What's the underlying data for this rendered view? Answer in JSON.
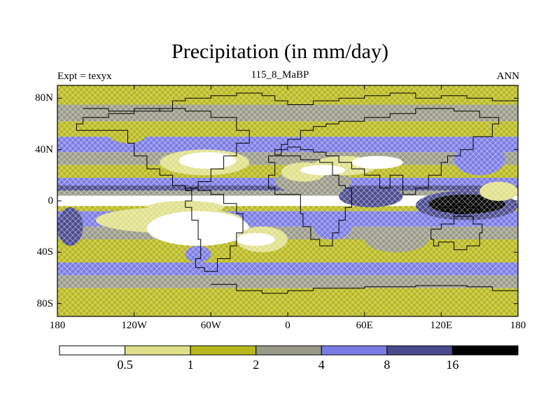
{
  "title": "Precipitation (in mm/day)",
  "subtitle": "115_8_MaBP",
  "left_label": "Expt = texyx",
  "right_label": "ANN",
  "colors": {
    "c0": "#ffffff",
    "c1": "#e0e08a",
    "c2": "#b8b81c",
    "c3": "#9a9a88",
    "c4": "#7b7be6",
    "c5": "#4a4a8e",
    "c6": "#000000",
    "land_outline": "#000000"
  },
  "chart_data": {
    "type": "heatmap",
    "variable": "Precipitation",
    "units": "mm/day",
    "xlim": [
      -180,
      180
    ],
    "ylim": [
      -90,
      90
    ],
    "x_ticks": [
      {
        "value": -180,
        "label": "180"
      },
      {
        "value": -120,
        "label": "120W"
      },
      {
        "value": -60,
        "label": "60W"
      },
      {
        "value": 0,
        "label": "0"
      },
      {
        "value": 60,
        "label": "60E"
      },
      {
        "value": 120,
        "label": "120E"
      },
      {
        "value": 180,
        "label": "180"
      }
    ],
    "y_ticks": [
      {
        "value": 80,
        "label": "80N"
      },
      {
        "value": 40,
        "label": "40N"
      },
      {
        "value": 0,
        "label": "0"
      },
      {
        "value": -40,
        "label": "40S"
      },
      {
        "value": -80,
        "label": "80S"
      }
    ],
    "colorbar": {
      "levels": [
        0.5,
        1,
        2,
        4,
        8,
        16
      ],
      "labels": [
        "0.5",
        "1",
        "2",
        "4",
        "8",
        "16"
      ],
      "colors": [
        "#ffffff",
        "#e0e08a",
        "#b8b81c",
        "#9a9a88",
        "#7b7be6",
        "#4a4a8e",
        "#000000"
      ]
    },
    "zonal_bands": [
      {
        "lat": [
          75,
          90
        ],
        "class": 2
      },
      {
        "lat": [
          62,
          75
        ],
        "class": 3
      },
      {
        "lat": [
          50,
          62
        ],
        "class": 2
      },
      {
        "lat": [
          38,
          50
        ],
        "class": 4
      },
      {
        "lat": [
          28,
          38
        ],
        "class": 3
      },
      {
        "lat": [
          18,
          28
        ],
        "class": 2
      },
      {
        "lat": [
          12,
          18
        ],
        "class": 4
      },
      {
        "lat": [
          8,
          12
        ],
        "class": 5
      },
      {
        "lat": [
          4,
          8
        ],
        "class": 3
      },
      {
        "lat": [
          -4,
          4
        ],
        "class": 0
      },
      {
        "lat": [
          -8,
          -4
        ],
        "class": 2
      },
      {
        "lat": [
          -20,
          -8
        ],
        "class": 4
      },
      {
        "lat": [
          -30,
          -20
        ],
        "class": 3
      },
      {
        "lat": [
          -48,
          -30
        ],
        "class": 2
      },
      {
        "lat": [
          -58,
          -48
        ],
        "class": 4
      },
      {
        "lat": [
          -68,
          -58
        ],
        "class": 3
      },
      {
        "lat": [
          -90,
          -68
        ],
        "class": 2
      }
    ],
    "regions": [
      {
        "lon": [
          -180,
          -160
        ],
        "lat": [
          -35,
          -5
        ],
        "class": 5
      },
      {
        "lon": [
          -140,
          -110
        ],
        "lat": [
          45,
          60
        ],
        "class": 2
      },
      {
        "lon": [
          -100,
          -30
        ],
        "lat": [
          20,
          40
        ],
        "class": 1
      },
      {
        "lon": [
          -85,
          -40
        ],
        "lat": [
          25,
          38
        ],
        "class": 0
      },
      {
        "lon": [
          -110,
          -50
        ],
        "lat": [
          -10,
          0
        ],
        "class": 1
      },
      {
        "lon": [
          -150,
          -35
        ],
        "lat": [
          -25,
          -5
        ],
        "class": 1
      },
      {
        "lon": [
          -110,
          -30
        ],
        "lat": [
          -35,
          -8
        ],
        "class": 0
      },
      {
        "lon": [
          -40,
          0
        ],
        "lat": [
          -40,
          -20
        ],
        "class": 1
      },
      {
        "lon": [
          -40,
          -10
        ],
        "lat": [
          -35,
          -25
        ],
        "class": 0
      },
      {
        "lon": [
          -10,
          50
        ],
        "lat": [
          5,
          25
        ],
        "class": 3
      },
      {
        "lon": [
          20,
          70
        ],
        "lat": [
          20,
          35
        ],
        "class": 1
      },
      {
        "lon": [
          50,
          90
        ],
        "lat": [
          25,
          35
        ],
        "class": 0
      },
      {
        "lon": [
          -5,
          30
        ],
        "lat": [
          15,
          30
        ],
        "class": 1
      },
      {
        "lon": [
          10,
          45
        ],
        "lat": [
          20,
          28
        ],
        "class": 0
      },
      {
        "lon": [
          40,
          90
        ],
        "lat": [
          -5,
          12
        ],
        "class": 5
      },
      {
        "lon": [
          100,
          180
        ],
        "lat": [
          -15,
          8
        ],
        "class": 5
      },
      {
        "lon": [
          110,
          170
        ],
        "lat": [
          -10,
          5
        ],
        "class": 6
      },
      {
        "lon": [
          130,
          170
        ],
        "lat": [
          20,
          45
        ],
        "class": 4
      },
      {
        "lon": [
          20,
          50
        ],
        "lat": [
          -30,
          -10
        ],
        "class": 4
      },
      {
        "lon": [
          60,
          110
        ],
        "lat": [
          -40,
          -20
        ],
        "class": 3
      },
      {
        "lon": [
          -80,
          -60
        ],
        "lat": [
          -48,
          -35
        ],
        "class": 4
      },
      {
        "lon": [
          150,
          180
        ],
        "lat": [
          0,
          15
        ],
        "class": 1
      }
    ],
    "coastlines": [
      [
        [
          -160,
          72
        ],
        [
          -140,
          70
        ],
        [
          -120,
          72
        ],
        [
          -100,
          70
        ],
        [
          -90,
          78
        ],
        [
          -80,
          80
        ],
        [
          -60,
          82
        ],
        [
          -40,
          84
        ],
        [
          -20,
          82
        ],
        [
          -10,
          78
        ],
        [
          0,
          75
        ],
        [
          20,
          78
        ],
        [
          40,
          80
        ],
        [
          60,
          82
        ],
        [
          80,
          84
        ],
        [
          100,
          80
        ],
        [
          120,
          82
        ],
        [
          140,
          80
        ],
        [
          160,
          78
        ],
        [
          180,
          80
        ]
      ],
      [
        [
          -125,
          45
        ],
        [
          -120,
          35
        ],
        [
          -110,
          25
        ],
        [
          -100,
          20
        ],
        [
          -90,
          12
        ],
        [
          -80,
          8
        ],
        [
          -75,
          10
        ],
        [
          -70,
          15
        ],
        [
          -60,
          25
        ],
        [
          -50,
          35
        ],
        [
          -40,
          45
        ],
        [
          -30,
          55
        ],
        [
          -40,
          65
        ],
        [
          -60,
          70
        ],
        [
          -80,
          72
        ],
        [
          -100,
          70
        ],
        [
          -120,
          68
        ],
        [
          -140,
          65
        ],
        [
          -160,
          60
        ],
        [
          -165,
          55
        ],
        [
          -150,
          55
        ],
        [
          -135,
          55
        ],
        [
          -125,
          45
        ]
      ],
      [
        [
          -80,
          8
        ],
        [
          -75,
          0
        ],
        [
          -80,
          -5
        ],
        [
          -75,
          -15
        ],
        [
          -70,
          -30
        ],
        [
          -68,
          -45
        ],
        [
          -72,
          -52
        ],
        [
          -65,
          -55
        ],
        [
          -55,
          -45
        ],
        [
          -45,
          -35
        ],
        [
          -40,
          -25
        ],
        [
          -35,
          -10
        ],
        [
          -40,
          -2
        ],
        [
          -50,
          5
        ],
        [
          -60,
          8
        ],
        [
          -70,
          10
        ],
        [
          -80,
          8
        ]
      ],
      [
        [
          -15,
          30
        ],
        [
          -10,
          20
        ],
        [
          -15,
          10
        ],
        [
          -10,
          5
        ],
        [
          0,
          5
        ],
        [
          10,
          3
        ],
        [
          10,
          -10
        ],
        [
          12,
          -20
        ],
        [
          18,
          -30
        ],
        [
          25,
          -35
        ],
        [
          35,
          -25
        ],
        [
          40,
          -15
        ],
        [
          45,
          -5
        ],
        [
          50,
          10
        ],
        [
          45,
          12
        ],
        [
          40,
          20
        ],
        [
          35,
          30
        ],
        [
          25,
          32
        ],
        [
          10,
          35
        ],
        [
          0,
          35
        ],
        [
          -10,
          35
        ],
        [
          -15,
          30
        ]
      ],
      [
        [
          -10,
          36
        ],
        [
          -5,
          44
        ],
        [
          0,
          48
        ],
        [
          10,
          55
        ],
        [
          20,
          58
        ],
        [
          30,
          60
        ],
        [
          40,
          62
        ],
        [
          60,
          65
        ],
        [
          80,
          68
        ],
        [
          100,
          72
        ],
        [
          130,
          70
        ],
        [
          150,
          65
        ],
        [
          165,
          60
        ],
        [
          160,
          50
        ],
        [
          145,
          40
        ],
        [
          135,
          35
        ],
        [
          125,
          30
        ],
        [
          120,
          20
        ],
        [
          110,
          10
        ],
        [
          100,
          5
        ],
        [
          90,
          20
        ],
        [
          80,
          10
        ],
        [
          72,
          20
        ],
        [
          60,
          25
        ],
        [
          50,
          30
        ],
        [
          40,
          35
        ],
        [
          30,
          38
        ],
        [
          20,
          40
        ],
        [
          10,
          42
        ],
        [
          0,
          40
        ],
        [
          -10,
          36
        ]
      ],
      [
        [
          -60,
          -65
        ],
        [
          -40,
          -70
        ],
        [
          -20,
          -72
        ],
        [
          0,
          -70
        ],
        [
          20,
          -68
        ],
        [
          40,
          -68
        ],
        [
          60,
          -67
        ],
        [
          80,
          -67
        ],
        [
          100,
          -66
        ],
        [
          120,
          -66
        ],
        [
          140,
          -67
        ],
        [
          160,
          -70
        ],
        [
          180,
          -75
        ]
      ],
      [
        [
          112,
          -22
        ],
        [
          120,
          -18
        ],
        [
          130,
          -12
        ],
        [
          140,
          -12
        ],
        [
          145,
          -18
        ],
        [
          152,
          -25
        ],
        [
          150,
          -35
        ],
        [
          140,
          -38
        ],
        [
          130,
          -32
        ],
        [
          118,
          -35
        ],
        [
          114,
          -30
        ],
        [
          112,
          -22
        ]
      ],
      [
        [
          120,
          -5
        ],
        [
          130,
          -3
        ],
        [
          140,
          -5
        ],
        [
          150,
          -8
        ],
        [
          140,
          -10
        ],
        [
          130,
          -8
        ],
        [
          120,
          -5
        ]
      ]
    ]
  }
}
